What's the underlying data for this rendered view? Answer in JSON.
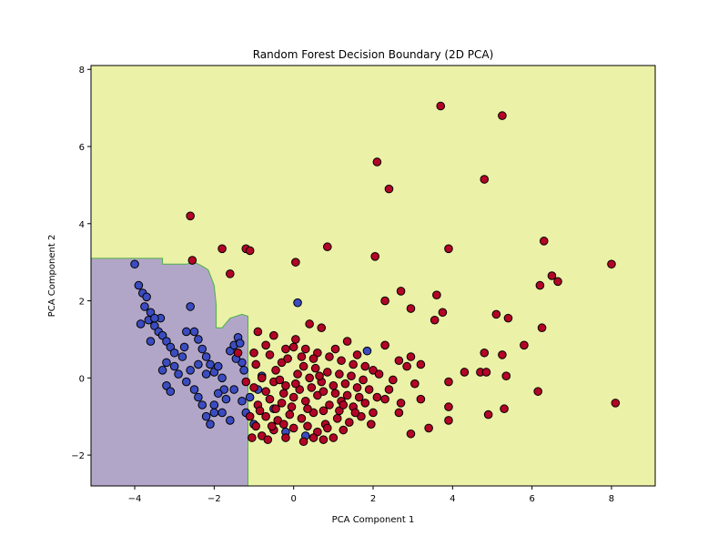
{
  "chart_data": {
    "type": "scatter",
    "title": "Random Forest Decision Boundary (2D PCA)",
    "xlabel": "PCA Component 1",
    "ylabel": "PCA Component 2",
    "xlim": [
      -5.1,
      9.1
    ],
    "ylim": [
      -2.8,
      8.1
    ],
    "x_ticks": [
      -4,
      -2,
      0,
      2,
      4,
      6,
      8
    ],
    "y_ticks": [
      -2,
      0,
      2,
      4,
      6,
      8
    ],
    "grid": false,
    "legend": "none",
    "colors": {
      "region_class_0": "#b2a6c8",
      "region_class_1": "#ebf1a6",
      "boundary": "#4daf4a",
      "point_class_0": "#3b4cc0",
      "point_class_1": "#b40426",
      "point_edge": "#000000"
    },
    "decision_region_class_0": [
      [
        -5.1,
        3.1
      ],
      [
        -3.3,
        3.1
      ],
      [
        -3.3,
        2.95
      ],
      [
        -2.7,
        2.95
      ],
      [
        -2.5,
        3.0
      ],
      [
        -2.3,
        2.9
      ],
      [
        -2.15,
        2.8
      ],
      [
        -2.0,
        2.4
      ],
      [
        -1.95,
        1.9
      ],
      [
        -1.95,
        1.3
      ],
      [
        -1.8,
        1.3
      ],
      [
        -1.6,
        1.55
      ],
      [
        -1.3,
        1.65
      ],
      [
        -1.15,
        1.6
      ],
      [
        -1.15,
        -2.8
      ],
      [
        -5.1,
        -2.8
      ]
    ],
    "series": [
      {
        "points": [
          [
            -4.0,
            2.95
          ],
          [
            -3.9,
            2.4
          ],
          [
            -3.8,
            2.2
          ],
          [
            -3.7,
            2.1
          ],
          [
            -3.75,
            1.85
          ],
          [
            -3.6,
            1.7
          ],
          [
            -3.65,
            1.5
          ],
          [
            -3.5,
            1.35
          ],
          [
            -3.35,
            1.55
          ],
          [
            -3.4,
            1.2
          ],
          [
            -3.3,
            1.1
          ],
          [
            -3.2,
            0.95
          ],
          [
            -3.1,
            0.8
          ],
          [
            -3.0,
            0.65
          ],
          [
            -3.2,
            0.4
          ],
          [
            -3.3,
            0.2
          ],
          [
            -3.0,
            0.3
          ],
          [
            -2.9,
            0.1
          ],
          [
            -2.8,
            0.55
          ],
          [
            -2.75,
            0.8
          ],
          [
            -2.7,
            1.2
          ],
          [
            -2.5,
            1.2
          ],
          [
            -2.4,
            1.0
          ],
          [
            -2.3,
            0.75
          ],
          [
            -2.2,
            0.55
          ],
          [
            -2.1,
            0.35
          ],
          [
            -2.0,
            0.15
          ],
          [
            -1.9,
            0.3
          ],
          [
            -1.8,
            0.0
          ],
          [
            -1.75,
            -0.3
          ],
          [
            -1.7,
            -0.55
          ],
          [
            -1.6,
            0.7
          ],
          [
            -1.5,
            0.85
          ],
          [
            -1.4,
            1.05
          ],
          [
            -1.35,
            0.9
          ],
          [
            -1.3,
            0.4
          ],
          [
            -1.25,
            0.2
          ],
          [
            -1.45,
            0.5
          ],
          [
            -2.6,
            0.2
          ],
          [
            -2.5,
            -0.3
          ],
          [
            -2.4,
            -0.5
          ],
          [
            -2.3,
            -0.7
          ],
          [
            -2.2,
            -1.0
          ],
          [
            -2.0,
            -0.7
          ],
          [
            -1.9,
            -0.4
          ],
          [
            -1.8,
            -0.9
          ],
          [
            -1.6,
            -1.1
          ],
          [
            -1.5,
            -0.3
          ],
          [
            -1.3,
            -0.6
          ],
          [
            -1.2,
            -0.9
          ],
          [
            -3.2,
            -0.2
          ],
          [
            -3.1,
            -0.35
          ],
          [
            -2.7,
            -0.1
          ],
          [
            -2.6,
            1.85
          ],
          [
            -3.5,
            1.55
          ],
          [
            -3.85,
            1.4
          ],
          [
            -3.6,
            0.95
          ],
          [
            -2.4,
            0.35
          ],
          [
            -2.2,
            0.1
          ],
          [
            -2.0,
            -0.9
          ],
          [
            -1.1,
            -0.5
          ],
          [
            -0.9,
            -0.3
          ],
          [
            -0.8,
            0.05
          ],
          [
            0.1,
            1.95
          ],
          [
            1.85,
            0.7
          ],
          [
            0.3,
            -1.5
          ],
          [
            -0.2,
            -1.4
          ],
          [
            -2.1,
            -1.2
          ],
          [
            -1.0,
            -1.2
          ],
          [
            -0.5,
            -0.8
          ]
        ]
      },
      {
        "points": [
          [
            3.7,
            7.05
          ],
          [
            5.25,
            6.8
          ],
          [
            2.1,
            5.6
          ],
          [
            4.8,
            5.15
          ],
          [
            2.4,
            4.9
          ],
          [
            -2.6,
            4.2
          ],
          [
            -1.8,
            3.35
          ],
          [
            -1.2,
            3.35
          ],
          [
            -1.1,
            3.3
          ],
          [
            0.85,
            3.4
          ],
          [
            2.05,
            3.15
          ],
          [
            3.9,
            3.35
          ],
          [
            6.3,
            3.55
          ],
          [
            -2.55,
            3.05
          ],
          [
            0.05,
            3.0
          ],
          [
            8.0,
            2.95
          ],
          [
            -1.6,
            2.7
          ],
          [
            6.5,
            2.65
          ],
          [
            6.65,
            2.5
          ],
          [
            6.2,
            2.4
          ],
          [
            2.7,
            2.25
          ],
          [
            3.6,
            2.15
          ],
          [
            2.3,
            2.0
          ],
          [
            2.95,
            1.8
          ],
          [
            3.75,
            1.7
          ],
          [
            5.1,
            1.65
          ],
          [
            5.4,
            1.55
          ],
          [
            3.55,
            1.5
          ],
          [
            0.4,
            1.4
          ],
          [
            0.7,
            1.3
          ],
          [
            6.25,
            1.3
          ],
          [
            -0.9,
            1.2
          ],
          [
            -0.5,
            1.1
          ],
          [
            0.05,
            1.0
          ],
          [
            1.35,
            0.95
          ],
          [
            2.3,
            0.85
          ],
          [
            5.8,
            0.85
          ],
          [
            4.8,
            0.65
          ],
          [
            5.25,
            0.6
          ],
          [
            2.95,
            0.55
          ],
          [
            2.65,
            0.45
          ],
          [
            3.2,
            0.35
          ],
          [
            2.85,
            0.3
          ],
          [
            4.3,
            0.15
          ],
          [
            4.7,
            0.15
          ],
          [
            4.85,
            0.15
          ],
          [
            5.35,
            0.05
          ],
          [
            2.5,
            -0.05
          ],
          [
            3.05,
            -0.15
          ],
          [
            3.9,
            -0.1
          ],
          [
            6.15,
            -0.35
          ],
          [
            2.3,
            -0.55
          ],
          [
            2.7,
            -0.65
          ],
          [
            3.2,
            -0.55
          ],
          [
            3.9,
            -0.75
          ],
          [
            5.3,
            -0.8
          ],
          [
            4.9,
            -0.95
          ],
          [
            3.9,
            -1.1
          ],
          [
            2.65,
            -0.9
          ],
          [
            2.95,
            -1.45
          ],
          [
            3.4,
            -1.3
          ],
          [
            8.1,
            -0.65
          ],
          [
            -0.6,
            0.6
          ],
          [
            -0.3,
            0.4
          ],
          [
            0.0,
            0.8
          ],
          [
            0.3,
            0.75
          ],
          [
            0.6,
            0.65
          ],
          [
            0.9,
            0.55
          ],
          [
            1.2,
            0.45
          ],
          [
            1.5,
            0.35
          ],
          [
            1.8,
            0.3
          ],
          [
            2.0,
            0.2
          ],
          [
            -0.8,
            0.0
          ],
          [
            -0.5,
            -0.1
          ],
          [
            -0.2,
            -0.2
          ],
          [
            0.1,
            0.1
          ],
          [
            0.4,
            0.0
          ],
          [
            0.7,
            -0.1
          ],
          [
            1.0,
            -0.2
          ],
          [
            1.3,
            -0.15
          ],
          [
            1.6,
            -0.25
          ],
          [
            1.9,
            -0.3
          ],
          [
            -0.9,
            -0.7
          ],
          [
            -0.6,
            -0.55
          ],
          [
            -0.3,
            -0.65
          ],
          [
            0.0,
            -0.5
          ],
          [
            0.3,
            -0.6
          ],
          [
            0.6,
            -0.45
          ],
          [
            0.9,
            -0.7
          ],
          [
            1.2,
            -0.6
          ],
          [
            1.5,
            -0.75
          ],
          [
            1.8,
            -0.65
          ],
          [
            2.1,
            -0.5
          ],
          [
            -0.7,
            -1.0
          ],
          [
            -0.4,
            -1.1
          ],
          [
            -0.1,
            -0.95
          ],
          [
            0.2,
            -1.05
          ],
          [
            0.5,
            -0.9
          ],
          [
            0.8,
            -1.2
          ],
          [
            1.1,
            -1.05
          ],
          [
            1.4,
            -1.15
          ],
          [
            1.7,
            -1.0
          ],
          [
            2.0,
            -0.9
          ],
          [
            -0.8,
            -1.5
          ],
          [
            -0.5,
            -1.35
          ],
          [
            0.0,
            -1.3
          ],
          [
            0.6,
            -1.4
          ],
          [
            1.0,
            -1.55
          ],
          [
            -1.0,
            -0.25
          ],
          [
            -0.95,
            0.35
          ],
          [
            -0.45,
            0.2
          ],
          [
            -0.15,
            0.5
          ],
          [
            0.25,
            0.3
          ],
          [
            0.55,
            0.25
          ],
          [
            0.85,
            0.15
          ],
          [
            1.15,
            0.1
          ],
          [
            1.45,
            0.05
          ],
          [
            1.75,
            -0.05
          ],
          [
            -0.7,
            -0.35
          ],
          [
            -0.25,
            -0.4
          ],
          [
            0.15,
            -0.3
          ],
          [
            0.45,
            -0.25
          ],
          [
            0.75,
            -0.35
          ],
          [
            1.05,
            -0.4
          ],
          [
            1.35,
            -0.45
          ],
          [
            1.65,
            -0.5
          ],
          [
            -0.85,
            -0.85
          ],
          [
            -0.45,
            -0.8
          ],
          [
            -0.05,
            -0.75
          ],
          [
            0.35,
            -0.8
          ],
          [
            0.75,
            -0.85
          ],
          [
            1.15,
            -0.85
          ],
          [
            1.55,
            -0.9
          ],
          [
            -0.95,
            -1.25
          ],
          [
            -0.25,
            -1.2
          ],
          [
            0.35,
            -1.25
          ],
          [
            0.85,
            -1.3
          ],
          [
            1.25,
            -1.35
          ],
          [
            -1.1,
            -1.0
          ],
          [
            -1.05,
            -1.55
          ],
          [
            -0.65,
            -1.6
          ],
          [
            -0.2,
            -1.55
          ],
          [
            0.25,
            -1.65
          ],
          [
            0.75,
            -1.6
          ],
          [
            -1.4,
            0.65
          ],
          [
            -1.2,
            -0.1
          ],
          [
            -1.0,
            0.65
          ],
          [
            -0.7,
            0.85
          ],
          [
            -0.2,
            0.75
          ],
          [
            0.2,
            0.55
          ],
          [
            0.5,
            0.5
          ],
          [
            1.05,
            0.75
          ],
          [
            1.6,
            0.6
          ],
          [
            2.15,
            0.1
          ],
          [
            2.4,
            -0.3
          ],
          [
            1.95,
            -1.2
          ],
          [
            -0.35,
            -0.05
          ],
          [
            0.05,
            -0.15
          ],
          [
            0.65,
            0.05
          ],
          [
            1.25,
            -0.7
          ],
          [
            -0.55,
            -1.25
          ],
          [
            0.5,
            -1.55
          ]
        ]
      }
    ]
  }
}
